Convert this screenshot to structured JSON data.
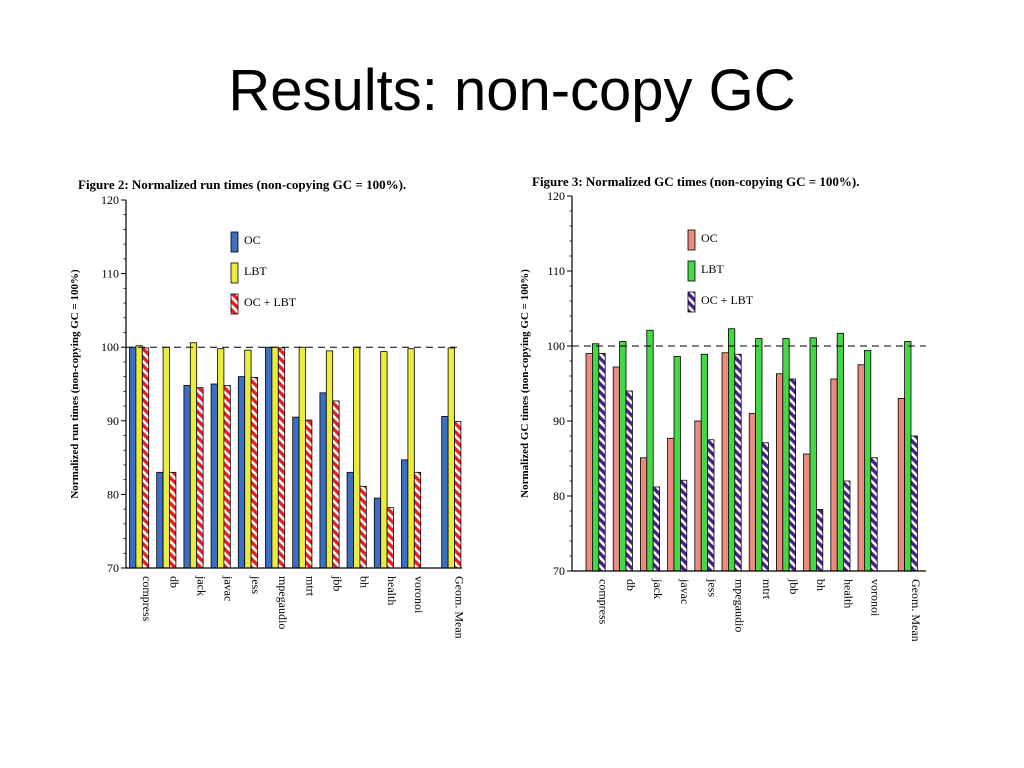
{
  "slide": {
    "title": "Results: non-copy GC"
  },
  "colors": {
    "fig2": {
      "oc": "#3b6fc4",
      "lbt": "#ecec3a",
      "oclbt": "#ee1c24"
    },
    "fig3": {
      "oc": "#ec8a80",
      "lbt": "#45d845",
      "oclbt": "#4b1f8c"
    }
  },
  "chart_data": [
    {
      "type": "bar",
      "title": "Figure 2: Normalized run times (non-copying GC = 100%).",
      "xlabel": "",
      "ylabel": "Normalized run times (non-copying GC = 100%)",
      "ylim": [
        70,
        120
      ],
      "yticks": [
        70,
        80,
        90,
        100,
        110,
        120
      ],
      "reference_line": 100,
      "legend_position": "top-center",
      "categories": [
        "compress",
        "db",
        "jack",
        "javac",
        "jess",
        "mpegaudio",
        "mtrt",
        "jbb",
        "bh",
        "health",
        "voronoi",
        "Geom. Mean"
      ],
      "series": [
        {
          "name": "OC",
          "values": [
            100,
            83,
            94.8,
            95,
            96,
            100,
            90.5,
            93.8,
            83,
            79.5,
            84.7,
            90.6
          ]
        },
        {
          "name": "LBT",
          "values": [
            100.2,
            100,
            100.6,
            99.8,
            99.6,
            100,
            100,
            99.5,
            100,
            99.4,
            99.8,
            99.9
          ]
        },
        {
          "name": "OC + LBT",
          "values": [
            99.9,
            83,
            94.5,
            94.8,
            95.9,
            99.9,
            90.1,
            92.7,
            81.1,
            78.2,
            83,
            89.9
          ]
        }
      ]
    },
    {
      "type": "bar",
      "title": "Figure 3: Normalized GC times (non-copying GC = 100%).",
      "xlabel": "",
      "ylabel": "Normalized GC times (non-copying GC = 100%)",
      "ylim": [
        70,
        120
      ],
      "yticks": [
        70,
        80,
        90,
        100,
        110,
        120
      ],
      "reference_line": 100,
      "legend_position": "top-center",
      "categories": [
        "compress",
        "db",
        "jack",
        "javac",
        "jess",
        "mpegaudio",
        "mtrt",
        "jbb",
        "bh",
        "health",
        "voronoi",
        "Geom. Mean"
      ],
      "series": [
        {
          "name": "OC",
          "values": [
            99,
            97.2,
            85.1,
            87.7,
            90,
            99.1,
            91,
            96.3,
            85.6,
            95.6,
            97.5,
            93
          ]
        },
        {
          "name": "LBT",
          "values": [
            100.3,
            100.6,
            102.1,
            98.6,
            98.9,
            102.3,
            101,
            101,
            101.1,
            101.7,
            99.4,
            100.6
          ]
        },
        {
          "name": "OC + LBT",
          "values": [
            99,
            94,
            81.2,
            82.1,
            87.5,
            98.9,
            87.1,
            95.6,
            78.2,
            82,
            85.1,
            88
          ]
        }
      ]
    }
  ]
}
